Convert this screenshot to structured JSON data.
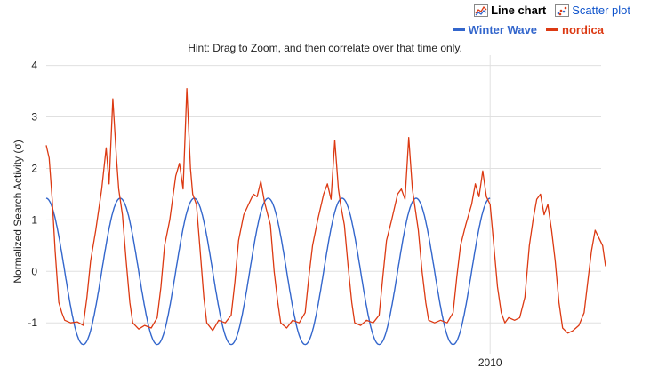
{
  "toolbar": {
    "line_chart_label": "Line chart",
    "scatter_plot_label": "Scatter plot",
    "line_chart_icon": "line-chart-icon",
    "scatter_plot_icon": "scatter-plot-icon"
  },
  "hint": "Hint: Drag to Zoom, and then correlate over that time only.",
  "chart_data": {
    "type": "line",
    "ylabel": "Normalized Search Activity (σ)",
    "ylim": [
      -1.6,
      4.2
    ],
    "yticks": [
      "4",
      "3",
      "2",
      "1",
      "0",
      "-1"
    ],
    "xticks": [
      "2010"
    ],
    "x_range": [
      2004.0,
      2011.5
    ],
    "grid": true,
    "legend_position": "top-right",
    "series": [
      {
        "name": "Winter Wave",
        "color": "#3366cc",
        "x_start": 2004.0,
        "x_end": 2010.0,
        "amplitude": 1.42,
        "period_years": 1.0,
        "peak_phase": 0.0
      },
      {
        "name": "nordica",
        "color": "#dc3912",
        "points": [
          [
            2004.0,
            2.45
          ],
          [
            2004.04,
            2.2
          ],
          [
            2004.08,
            1.4
          ],
          [
            2004.12,
            0.4
          ],
          [
            2004.17,
            -0.6
          ],
          [
            2004.21,
            -0.8
          ],
          [
            2004.25,
            -0.95
          ],
          [
            2004.33,
            -1.0
          ],
          [
            2004.42,
            -0.98
          ],
          [
            2004.5,
            -1.05
          ],
          [
            2004.55,
            -0.5
          ],
          [
            2004.6,
            0.2
          ],
          [
            2004.67,
            0.8
          ],
          [
            2004.75,
            1.6
          ],
          [
            2004.81,
            2.4
          ],
          [
            2004.85,
            1.7
          ],
          [
            2004.9,
            3.35
          ],
          [
            2004.95,
            2.2
          ],
          [
            2004.98,
            1.6
          ],
          [
            2005.03,
            1.1
          ],
          [
            2005.08,
            0.2
          ],
          [
            2005.13,
            -0.6
          ],
          [
            2005.17,
            -1.0
          ],
          [
            2005.25,
            -1.12
          ],
          [
            2005.33,
            -1.05
          ],
          [
            2005.42,
            -1.1
          ],
          [
            2005.5,
            -0.9
          ],
          [
            2005.55,
            -0.3
          ],
          [
            2005.6,
            0.5
          ],
          [
            2005.67,
            1.0
          ],
          [
            2005.75,
            1.85
          ],
          [
            2005.8,
            2.1
          ],
          [
            2005.85,
            1.6
          ],
          [
            2005.9,
            3.55
          ],
          [
            2005.95,
            2.0
          ],
          [
            2005.98,
            1.5
          ],
          [
            2006.03,
            1.3
          ],
          [
            2006.08,
            0.4
          ],
          [
            2006.13,
            -0.5
          ],
          [
            2006.17,
            -1.0
          ],
          [
            2006.25,
            -1.15
          ],
          [
            2006.33,
            -0.95
          ],
          [
            2006.42,
            -1.0
          ],
          [
            2006.5,
            -0.85
          ],
          [
            2006.55,
            -0.2
          ],
          [
            2006.6,
            0.6
          ],
          [
            2006.67,
            1.1
          ],
          [
            2006.75,
            1.35
          ],
          [
            2006.8,
            1.5
          ],
          [
            2006.85,
            1.45
          ],
          [
            2006.9,
            1.75
          ],
          [
            2006.95,
            1.35
          ],
          [
            2007.03,
            0.9
          ],
          [
            2007.08,
            0.0
          ],
          [
            2007.13,
            -0.6
          ],
          [
            2007.17,
            -1.0
          ],
          [
            2007.25,
            -1.1
          ],
          [
            2007.33,
            -0.95
          ],
          [
            2007.42,
            -1.0
          ],
          [
            2007.5,
            -0.8
          ],
          [
            2007.55,
            -0.1
          ],
          [
            2007.6,
            0.5
          ],
          [
            2007.67,
            1.0
          ],
          [
            2007.75,
            1.5
          ],
          [
            2007.8,
            1.7
          ],
          [
            2007.85,
            1.4
          ],
          [
            2007.9,
            2.55
          ],
          [
            2007.95,
            1.6
          ],
          [
            2007.98,
            1.3
          ],
          [
            2008.03,
            0.9
          ],
          [
            2008.08,
            0.1
          ],
          [
            2008.13,
            -0.6
          ],
          [
            2008.17,
            -1.0
          ],
          [
            2008.25,
            -1.05
          ],
          [
            2008.33,
            -0.95
          ],
          [
            2008.42,
            -1.0
          ],
          [
            2008.5,
            -0.85
          ],
          [
            2008.55,
            -0.1
          ],
          [
            2008.6,
            0.6
          ],
          [
            2008.67,
            1.0
          ],
          [
            2008.75,
            1.5
          ],
          [
            2008.8,
            1.6
          ],
          [
            2008.85,
            1.4
          ],
          [
            2008.9,
            2.6
          ],
          [
            2008.95,
            1.6
          ],
          [
            2008.98,
            1.3
          ],
          [
            2009.03,
            0.8
          ],
          [
            2009.08,
            0.0
          ],
          [
            2009.13,
            -0.6
          ],
          [
            2009.17,
            -0.95
          ],
          [
            2009.25,
            -1.0
          ],
          [
            2009.33,
            -0.95
          ],
          [
            2009.42,
            -1.0
          ],
          [
            2009.5,
            -0.8
          ],
          [
            2009.55,
            -0.1
          ],
          [
            2009.6,
            0.5
          ],
          [
            2009.67,
            0.9
          ],
          [
            2009.75,
            1.3
          ],
          [
            2009.8,
            1.7
          ],
          [
            2009.85,
            1.45
          ],
          [
            2009.9,
            1.95
          ],
          [
            2009.95,
            1.45
          ],
          [
            2010.0,
            1.3
          ],
          [
            2010.05,
            0.5
          ],
          [
            2010.1,
            -0.3
          ],
          [
            2010.15,
            -0.8
          ],
          [
            2010.2,
            -1.0
          ],
          [
            2010.25,
            -0.9
          ],
          [
            2010.33,
            -0.95
          ],
          [
            2010.4,
            -0.9
          ],
          [
            2010.47,
            -0.5
          ],
          [
            2010.53,
            0.5
          ],
          [
            2010.58,
            1.0
          ],
          [
            2010.63,
            1.4
          ],
          [
            2010.68,
            1.5
          ],
          [
            2010.73,
            1.1
          ],
          [
            2010.78,
            1.3
          ],
          [
            2010.83,
            0.8
          ],
          [
            2010.88,
            0.2
          ],
          [
            2010.93,
            -0.6
          ],
          [
            2010.98,
            -1.1
          ],
          [
            2011.05,
            -1.2
          ],
          [
            2011.12,
            -1.15
          ],
          [
            2011.2,
            -1.05
          ],
          [
            2011.27,
            -0.8
          ],
          [
            2011.32,
            -0.2
          ],
          [
            2011.37,
            0.4
          ],
          [
            2011.42,
            0.8
          ],
          [
            2011.47,
            0.65
          ],
          [
            2011.52,
            0.5
          ],
          [
            2011.56,
            0.1
          ]
        ]
      }
    ]
  }
}
